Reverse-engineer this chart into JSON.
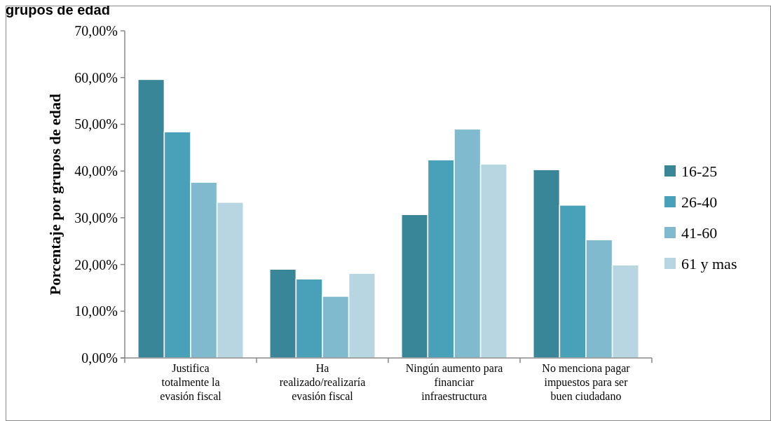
{
  "chart_data": {
    "type": "bar",
    "title": "grupos de edad",
    "ylabel": "Porcentaje por grupos de edad",
    "categories": [
      "Justifica totalmente la evasión fiscal",
      "Ha realizado/realizaría evasión fiscal",
      "Ningún aumento para financiar infraestructura",
      "No menciona pagar impuestos para ser buen ciudadano"
    ],
    "series": [
      {
        "name": "16-25",
        "color": "#3a8699",
        "values": [
          59.6,
          19.0,
          30.7,
          40.3
        ]
      },
      {
        "name": "26-40",
        "color": "#48a1b9",
        "values": [
          48.4,
          16.9,
          42.4,
          32.7
        ]
      },
      {
        "name": "41-60",
        "color": "#7fbacf",
        "values": [
          37.6,
          13.2,
          49.0,
          25.3
        ]
      },
      {
        "name": "61 y mas",
        "color": "#b7d6e1",
        "values": [
          33.3,
          18.1,
          41.5,
          19.9
        ]
      }
    ],
    "ylim": [
      0,
      70
    ],
    "yticks": [
      {
        "value": 0,
        "label": "0,00%"
      },
      {
        "value": 10,
        "label": "10,00%"
      },
      {
        "value": 20,
        "label": "20,00%"
      },
      {
        "value": 30,
        "label": "30,00%"
      },
      {
        "value": 40,
        "label": "40,00%"
      },
      {
        "value": 50,
        "label": "50,00%"
      },
      {
        "value": 60,
        "label": "60,00%"
      },
      {
        "value": 70,
        "label": "70,00%"
      }
    ],
    "grid": false,
    "legend": "right"
  }
}
